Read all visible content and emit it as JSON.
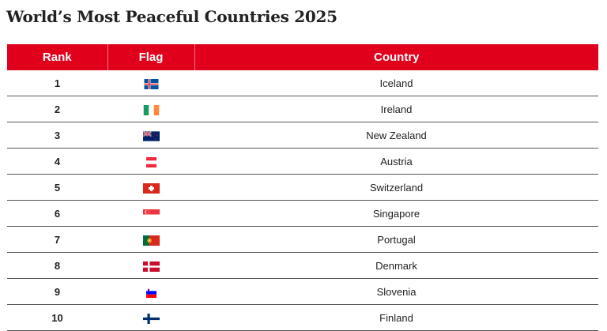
{
  "title": "World’s Most Peaceful Countries 2025",
  "table": {
    "headers": {
      "rank": "Rank",
      "flag": "Flag",
      "country": "Country"
    },
    "rows": [
      {
        "rank": "1",
        "country": "Iceland",
        "flag_icon": "iceland-flag-icon"
      },
      {
        "rank": "2",
        "country": "Ireland",
        "flag_icon": "ireland-flag-icon"
      },
      {
        "rank": "3",
        "country": "New Zealand",
        "flag_icon": "new-zealand-flag-icon"
      },
      {
        "rank": "4",
        "country": "Austria",
        "flag_icon": "austria-flag-icon"
      },
      {
        "rank": "5",
        "country": "Switzerland",
        "flag_icon": "switzerland-flag-icon"
      },
      {
        "rank": "6",
        "country": "Singapore",
        "flag_icon": "singapore-flag-icon"
      },
      {
        "rank": "7",
        "country": "Portugal",
        "flag_icon": "portugal-flag-icon"
      },
      {
        "rank": "8",
        "country": "Denmark",
        "flag_icon": "denmark-flag-icon"
      },
      {
        "rank": "9",
        "country": "Slovenia",
        "flag_icon": "slovenia-flag-icon"
      },
      {
        "rank": "10",
        "country": "Finland",
        "flag_icon": "finland-flag-icon"
      }
    ]
  },
  "colors": {
    "header_bg": "#e0001b",
    "header_text": "#ffffff",
    "row_divider": "#555555"
  }
}
